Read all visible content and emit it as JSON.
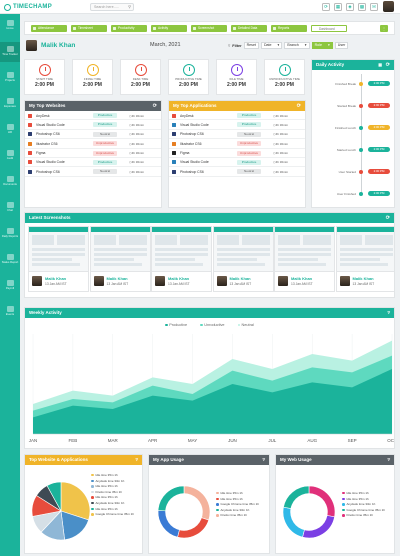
{
  "app": {
    "brand": "TIMECHAMP",
    "search_placeholder": "Search here....."
  },
  "top_icons": [
    "refresh-icon",
    "calendar-icon",
    "bell-icon",
    "grid-icon",
    "mail-icon"
  ],
  "sidebar": [
    {
      "label": "Home",
      "icon": "home-icon"
    },
    {
      "label": "Time Tracker",
      "icon": "clock-icon",
      "active": true
    },
    {
      "label": "Projects",
      "icon": "folder-icon"
    },
    {
      "label": "Expenses",
      "icon": "wallet-icon"
    },
    {
      "label": "HR",
      "icon": "people-icon"
    },
    {
      "label": "Audit",
      "icon": "audit-icon"
    },
    {
      "label": "Documents",
      "icon": "document-icon"
    },
    {
      "label": "Chat",
      "icon": "chat-icon"
    },
    {
      "label": "Daily Reports",
      "icon": "report-icon"
    },
    {
      "label": "Status Report",
      "icon": "status-icon"
    },
    {
      "label": "Payroll",
      "icon": "payroll-icon"
    },
    {
      "label": "Events",
      "icon": "event-icon"
    }
  ],
  "tabs": [
    {
      "label": "Attendance"
    },
    {
      "label": "Timesheet"
    },
    {
      "label": "Productivity"
    },
    {
      "label": "Activity"
    },
    {
      "label": "Screenshot"
    },
    {
      "label": "Detailed Data"
    },
    {
      "label": "Reports"
    },
    {
      "label": "Dashboard",
      "selected": true
    }
  ],
  "tab_more": "⋮",
  "user": {
    "name": "Malik Khan",
    "month": "March, 2021"
  },
  "filters": {
    "filter_label": "Filter",
    "reset_label": "Reset",
    "date_label": "Date",
    "branch_label": "Branch",
    "role_label": "Role",
    "user_label": "User"
  },
  "time_cards": [
    {
      "label": "START TIME",
      "value": "2:00 PM",
      "color": "#e74c3c"
    },
    {
      "label": "FINISH TIME",
      "value": "2:00 PM",
      "color": "#f0b429"
    },
    {
      "label": "DESK TIME",
      "value": "2:00 PM",
      "color": "#e74c3c"
    },
    {
      "label": "PRODUCTIVE TIME",
      "value": "2:00 PM",
      "color": "#1bb39b"
    },
    {
      "label": "IDLE TIME",
      "value": "2:00 PM",
      "color": "#7b3fe4"
    },
    {
      "label": "UNPRODUCTIVE TIME",
      "value": "2:00 PM",
      "color": "#1bb39b"
    }
  ],
  "websites": {
    "title": "My Top Websites",
    "rows": [
      {
        "name": "AnyDesk",
        "status": "Productive",
        "time": "4h 30min",
        "color": "#e74c3c"
      },
      {
        "name": "Visual Studio Code",
        "status": "Productive",
        "time": "4h 30min",
        "color": "#e74c3c"
      },
      {
        "name": "Photoshop CS6",
        "status": "Neutral",
        "time": "4h 30min",
        "color": "#2c3e70"
      },
      {
        "name": "Illustrator CS6",
        "status": "Unproductive",
        "time": "4h 30min",
        "color": "#e67e22"
      },
      {
        "name": "Figma",
        "status": "Unproductive",
        "time": "4h 30min",
        "color": "#e74c3c"
      },
      {
        "name": "Visual Studio Code",
        "status": "Productive",
        "time": "4h 30min",
        "color": "#e74c3c"
      },
      {
        "name": "Photoshop CS6",
        "status": "Neutral",
        "time": "4h 30min",
        "color": "#2c3e70"
      }
    ]
  },
  "applications": {
    "title": "My Top Applications",
    "rows": [
      {
        "name": "AnyDesk",
        "status": "Productive",
        "time": "4h 30min",
        "color": "#e74c3c"
      },
      {
        "name": "Visual Studio Code",
        "status": "Productive",
        "time": "4h 30min",
        "color": "#2980b9"
      },
      {
        "name": "Photoshop CS6",
        "status": "Neutral",
        "time": "4h 30min",
        "color": "#2c3e70"
      },
      {
        "name": "Illustrator CS6",
        "status": "Unproductive",
        "time": "4h 30min",
        "color": "#e67e22"
      },
      {
        "name": "Figma",
        "status": "Unproductive",
        "time": "4h 30min",
        "color": "#222222"
      },
      {
        "name": "Visual Studio Code",
        "status": "Productive",
        "time": "4h 30min",
        "color": "#2980b9"
      },
      {
        "name": "Photoshop CS6",
        "status": "Neutral",
        "time": "4h 30min",
        "color": "#2c3e70"
      }
    ]
  },
  "daily_activity": {
    "title": "Daily Activity",
    "items": [
      {
        "label": "Finished Break",
        "time": "2:00 PM",
        "dot": "#f0b429",
        "pill": "#1bb39b"
      },
      {
        "label": "Started Break",
        "time": "2:00 PM",
        "dot": "#e74c3c",
        "pill": "#e74c3c"
      },
      {
        "label": "Finished Lunch",
        "time": "2:00 PM",
        "dot": "#1bb39b",
        "pill": "#f0b429"
      },
      {
        "label": "Started Lunch",
        "time": "2:00 PM",
        "dot": "#1bb39b",
        "pill": "#1bb39b"
      },
      {
        "label": "User Started",
        "time": "2:00 PM",
        "dot": "#e74c3c",
        "pill": "#e74c3c"
      },
      {
        "label": "User Finished",
        "time": "2:00 PM",
        "dot": "#1bb39b",
        "pill": "#1bb39b"
      }
    ]
  },
  "screenshots": {
    "title": "Latest Screenshots",
    "items": [
      {
        "name": "Malik Khan",
        "date": "13 Jan AM IST"
      },
      {
        "name": "Malik Khan",
        "date": "13 Jan AM IST"
      },
      {
        "name": "Malik Khan",
        "date": "13 Jan AM IST"
      },
      {
        "name": "Malik Khan",
        "date": "13 Jan AM IST"
      },
      {
        "name": "Malik Khan",
        "date": "13 Jan AM IST"
      },
      {
        "name": "Malik Khan",
        "date": "13 Jan AM IST"
      }
    ]
  },
  "weekly_activity": {
    "title": "Weekly Activity",
    "legend": [
      "Productive",
      "Unroductive",
      "Neutral"
    ],
    "months": [
      "JAN",
      "FEB",
      "MAR",
      "APR",
      "MAY",
      "JUN",
      "JUL",
      "AUG",
      "SEP",
      "OCT"
    ]
  },
  "chart_data": {
    "type": "area",
    "x": [
      "JAN",
      "FEB",
      "MAR",
      "APR",
      "MAY",
      "JUN",
      "JUL",
      "AUG",
      "SEP",
      "OCT"
    ],
    "series": [
      {
        "name": "Productive",
        "color": "#1bb39b",
        "values": [
          20,
          34,
          30,
          46,
          40,
          60,
          50,
          62,
          56,
          78
        ]
      },
      {
        "name": "Unroductive",
        "color": "#5ed9bf",
        "values": [
          28,
          42,
          38,
          58,
          48,
          76,
          64,
          80,
          74,
          94
        ]
      },
      {
        "name": "Neutral",
        "color": "#b9f1e2",
        "values": [
          36,
          52,
          46,
          68,
          60,
          90,
          78,
          96,
          88,
          112
        ]
      }
    ],
    "ylim": [
      0,
      120
    ]
  },
  "website_apps_chart": {
    "title": "Top Website & Applications",
    "legend": [
      "Idle time 35m 1h",
      "Anydesk time 33m 1h",
      "Idle time 35m 1h",
      "Firefox time 35m 1h",
      "Idle time 35m 1h",
      "Anydesk time 33m 1h",
      "Idle time 35m 1h",
      "Google Chrome time 35m 1h"
    ],
    "slices": [
      {
        "value": 30,
        "color": "#f0c34a"
      },
      {
        "value": 18,
        "color": "#4a8fc8"
      },
      {
        "value": 14,
        "color": "#8fb7d6"
      },
      {
        "value": 10,
        "color": "#d5dfe6"
      },
      {
        "value": 12,
        "color": "#e74c3c"
      },
      {
        "value": 8,
        "color": "#3f4a54"
      },
      {
        "value": 8,
        "color": "#1bb39b"
      }
    ]
  },
  "app_usage_chart": {
    "title": "My App Usage",
    "legend": [
      "Idle time 35m 1h",
      "Idle time 35m 1h",
      "Google Chrome time 35m 1h",
      "Anydesk time 33m 1h",
      "Firefox time 35m 1h"
    ],
    "slices": [
      {
        "value": 30,
        "color": "#f4b29c"
      },
      {
        "value": 24,
        "color": "#e74c3c"
      },
      {
        "value": 22,
        "color": "#3a7bd5"
      },
      {
        "value": 24,
        "color": "#1bb39b"
      }
    ]
  },
  "web_usage_chart": {
    "title": "My Web Usage",
    "legend": [
      "Idle time 35m 1h",
      "Idle time 35m 1h",
      "Anydesk time 33m 1h",
      "Google Chrome time 35m 1h",
      "Firefox time 35m 1h"
    ],
    "slices": [
      {
        "value": 28,
        "color": "#e0307a"
      },
      {
        "value": 26,
        "color": "#7b3fe4"
      },
      {
        "value": 24,
        "color": "#2fb9e8"
      },
      {
        "value": 22,
        "color": "#1bb39b"
      }
    ]
  }
}
